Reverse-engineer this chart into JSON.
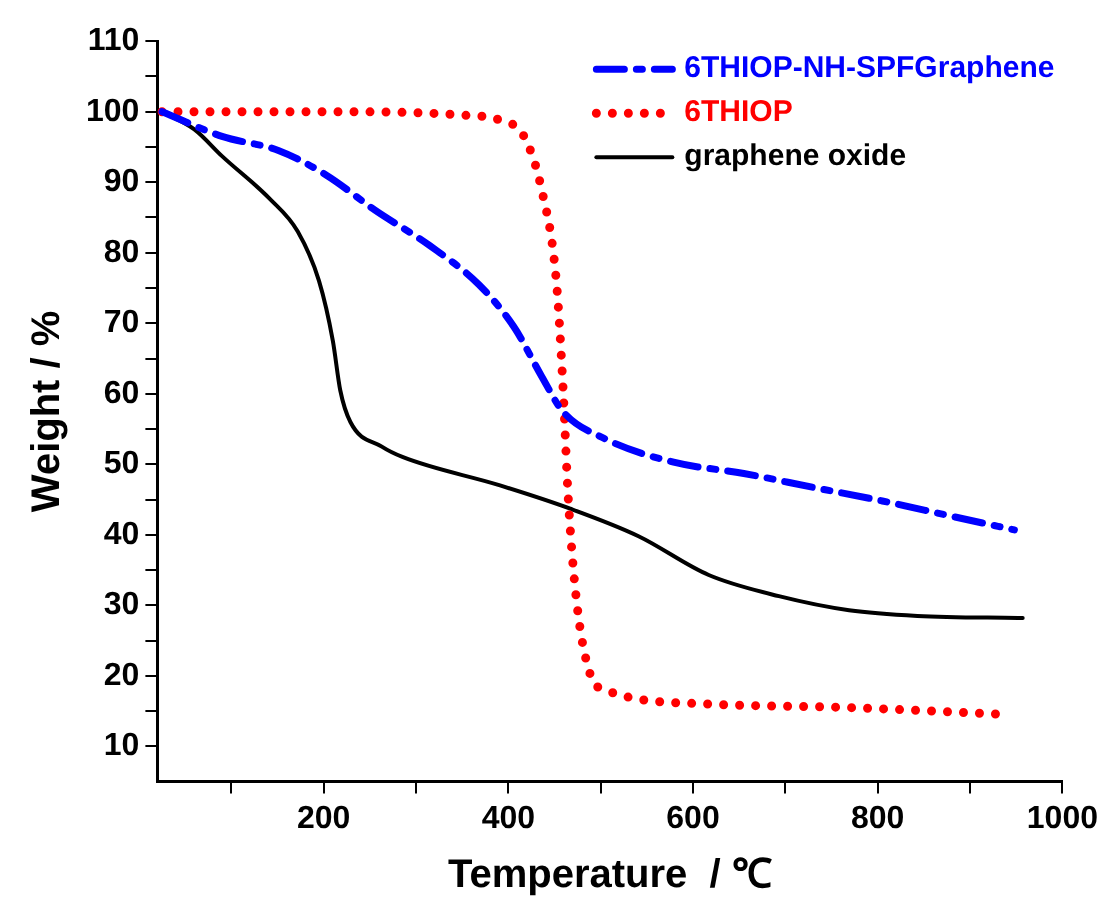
{
  "chart_data": {
    "type": "line",
    "xlabel": "Temperature  / ℃",
    "ylabel": "Weight / %",
    "xlim": [
      20,
      1000
    ],
    "ylim": [
      5,
      110
    ],
    "xticks": [
      {
        "value": 100,
        "label": null
      },
      200,
      {
        "value": 300,
        "label": null
      },
      400,
      {
        "value": 500,
        "label": null
      },
      600,
      {
        "value": 700,
        "label": null
      },
      800,
      {
        "value": 900,
        "label": null
      },
      1000
    ],
    "yticks": [
      10,
      {
        "value": 15,
        "label": null
      },
      20,
      {
        "value": 25,
        "label": null
      },
      30,
      {
        "value": 35,
        "label": null
      },
      40,
      {
        "value": 45,
        "label": null
      },
      50,
      {
        "value": 55,
        "label": null
      },
      60,
      {
        "value": 65,
        "label": null
      },
      70,
      {
        "value": 75,
        "label": null
      },
      80,
      {
        "value": 85,
        "label": null
      },
      90,
      {
        "value": 95,
        "label": null
      },
      100,
      {
        "value": 105,
        "label": null
      },
      110
    ],
    "grid": false,
    "legend": "top right",
    "marker": "none",
    "series": [
      {
        "name": "6THIOP-NH-SPFGraphene",
        "color": "#0000ff",
        "line_style": "dashdot",
        "x": [
          25,
          90,
          151,
          203,
          256,
          315,
          368,
          406,
          436,
          459,
          505,
          579,
          655,
          731,
          805,
          881,
          948
        ],
        "values": [
          100,
          96.5,
          94.5,
          91,
          86,
          81,
          75.5,
          69.5,
          62.5,
          57.5,
          53.6,
          50.3,
          48.7,
          46.7,
          44.8,
          42.6,
          40.7
        ]
      },
      {
        "name": "6THIOP",
        "color": "#ff0000",
        "line_style": "dotted",
        "x": [
          25,
          200,
          353,
          391,
          417,
          436,
          452,
          459,
          465,
          474,
          488,
          505,
          617,
          769,
          942
        ],
        "values": [
          100,
          100,
          99.5,
          98.8,
          96.5,
          89,
          76,
          61.5,
          45,
          30.5,
          20.5,
          18,
          16,
          15.5,
          14.5
        ]
      },
      {
        "name": "graphene oxide",
        "color": "#000000",
        "line_style": "solid",
        "x": [
          25,
          60,
          90,
          142,
          172,
          195,
          210,
          218,
          229,
          263,
          286,
          391,
          467,
          541,
          617,
          693,
          769,
          843,
          957
        ],
        "values": [
          100,
          97.5,
          93.7,
          87.6,
          83,
          76,
          67.5,
          60.5,
          56,
          52.5,
          51,
          47,
          43.7,
          39.8,
          34.3,
          31.3,
          29.3,
          28.5,
          28.2
        ]
      }
    ]
  }
}
